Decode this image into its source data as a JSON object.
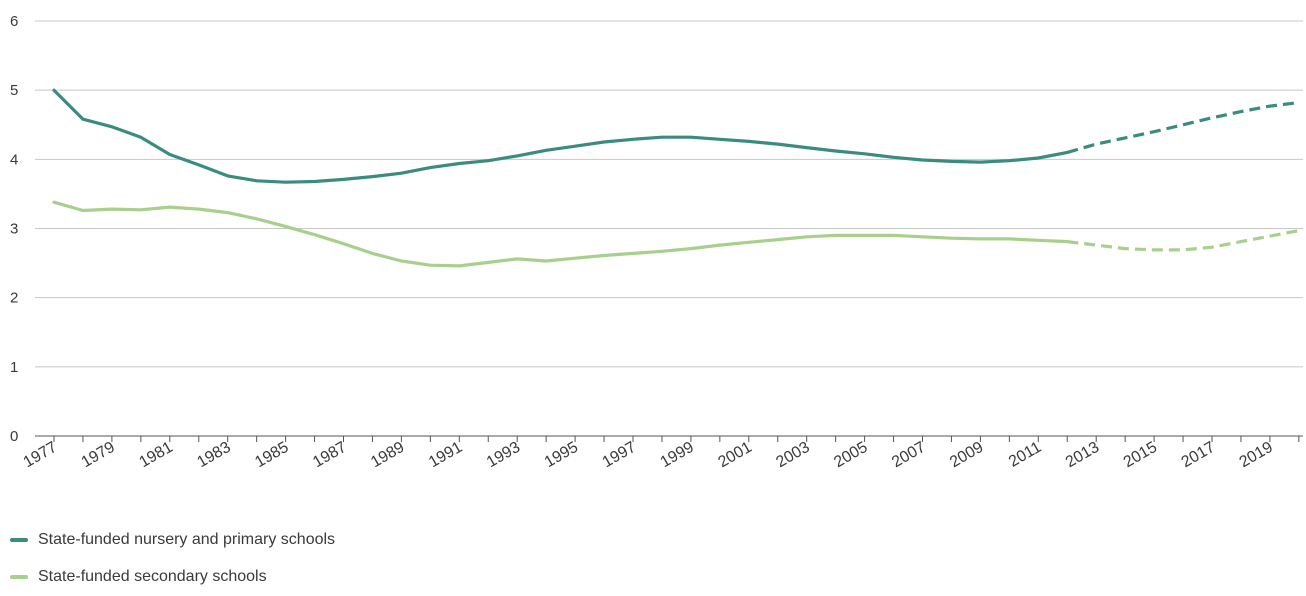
{
  "chart_data": {
    "type": "line",
    "ylim": [
      0,
      6
    ],
    "y_ticks": [
      "0",
      "1",
      "2",
      "3",
      "4",
      "5",
      "6"
    ],
    "x_tick_labels": [
      "1977",
      "1979",
      "1981",
      "1983",
      "1985",
      "1987",
      "1989",
      "1991",
      "1993",
      "1995",
      "1997",
      "1999",
      "2001",
      "2003",
      "2005",
      "2007",
      "2009",
      "2011",
      "2013",
      "2015",
      "2017",
      "2019"
    ],
    "grid": "horizontal",
    "legend_position": "bottom-left",
    "projection_start": 2012,
    "x": [
      1977,
      1978,
      1979,
      1980,
      1981,
      1982,
      1983,
      1984,
      1985,
      1986,
      1987,
      1988,
      1989,
      1990,
      1991,
      1992,
      1993,
      1994,
      1995,
      1996,
      1997,
      1998,
      1999,
      2000,
      2001,
      2002,
      2003,
      2004,
      2005,
      2006,
      2007,
      2008,
      2009,
      2010,
      2011,
      2012,
      2013,
      2014,
      2015,
      2016,
      2017,
      2018,
      2019,
      2020
    ],
    "series": [
      {
        "name": "State-funded nursery and primary schools",
        "color": "#3a8c7e",
        "values": [
          5.0,
          4.58,
          4.47,
          4.32,
          4.07,
          3.92,
          3.76,
          3.69,
          3.67,
          3.68,
          3.71,
          3.75,
          3.8,
          3.88,
          3.94,
          3.98,
          4.05,
          4.13,
          4.19,
          4.25,
          4.29,
          4.32,
          4.32,
          4.29,
          4.26,
          4.22,
          4.17,
          4.12,
          4.08,
          4.03,
          3.99,
          3.97,
          3.96,
          3.98,
          4.02,
          4.1,
          4.22,
          4.31,
          4.4,
          4.5,
          4.6,
          4.69,
          4.77,
          4.82
        ]
      },
      {
        "name": "State-funded secondary schools",
        "color": "#a8d08d",
        "values": [
          3.38,
          3.26,
          3.28,
          3.27,
          3.31,
          3.28,
          3.23,
          3.14,
          3.03,
          2.91,
          2.78,
          2.64,
          2.53,
          2.47,
          2.46,
          2.51,
          2.56,
          2.53,
          2.57,
          2.61,
          2.64,
          2.67,
          2.71,
          2.76,
          2.8,
          2.84,
          2.88,
          2.9,
          2.9,
          2.9,
          2.88,
          2.86,
          2.85,
          2.85,
          2.83,
          2.81,
          2.76,
          2.71,
          2.69,
          2.69,
          2.73,
          2.81,
          2.89,
          2.97
        ]
      }
    ]
  }
}
